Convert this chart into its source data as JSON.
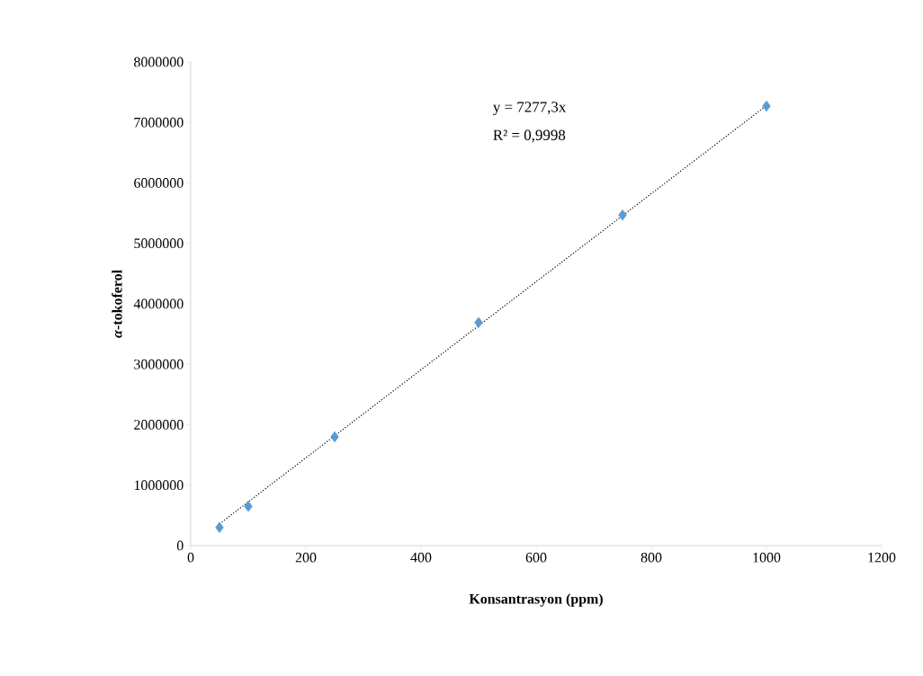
{
  "chart_data": {
    "type": "scatter",
    "xlabel": "Konsantrasyon (ppm)",
    "ylabel": "*α*-tokoferol",
    "xlim": [
      0,
      1200
    ],
    "xticks": [
      0,
      200,
      400,
      600,
      800,
      1000,
      1200
    ],
    "ylim": [
      0,
      8000000
    ],
    "yticks": [
      0,
      1000000,
      2000000,
      3000000,
      4000000,
      5000000,
      6000000,
      7000000,
      8000000
    ],
    "grid": false,
    "series": [
      {
        "color": "#5b9bd5",
        "marker": "diamond",
        "x": [
          50,
          100,
          250,
          500,
          750,
          1000
        ],
        "values": [
          300000,
          650000,
          1800000,
          3690000,
          5470000,
          7270000
        ]
      },
      {
        "type": "line",
        "color": "#000000",
        "marker": "none",
        "line_style": "dotted",
        "x": [
          50,
          1000
        ],
        "values": [
          360000,
          7280000
        ]
      }
    ],
    "annotations": [
      "y = 7277,3x",
      "R² = 0,9998"
    ]
  }
}
